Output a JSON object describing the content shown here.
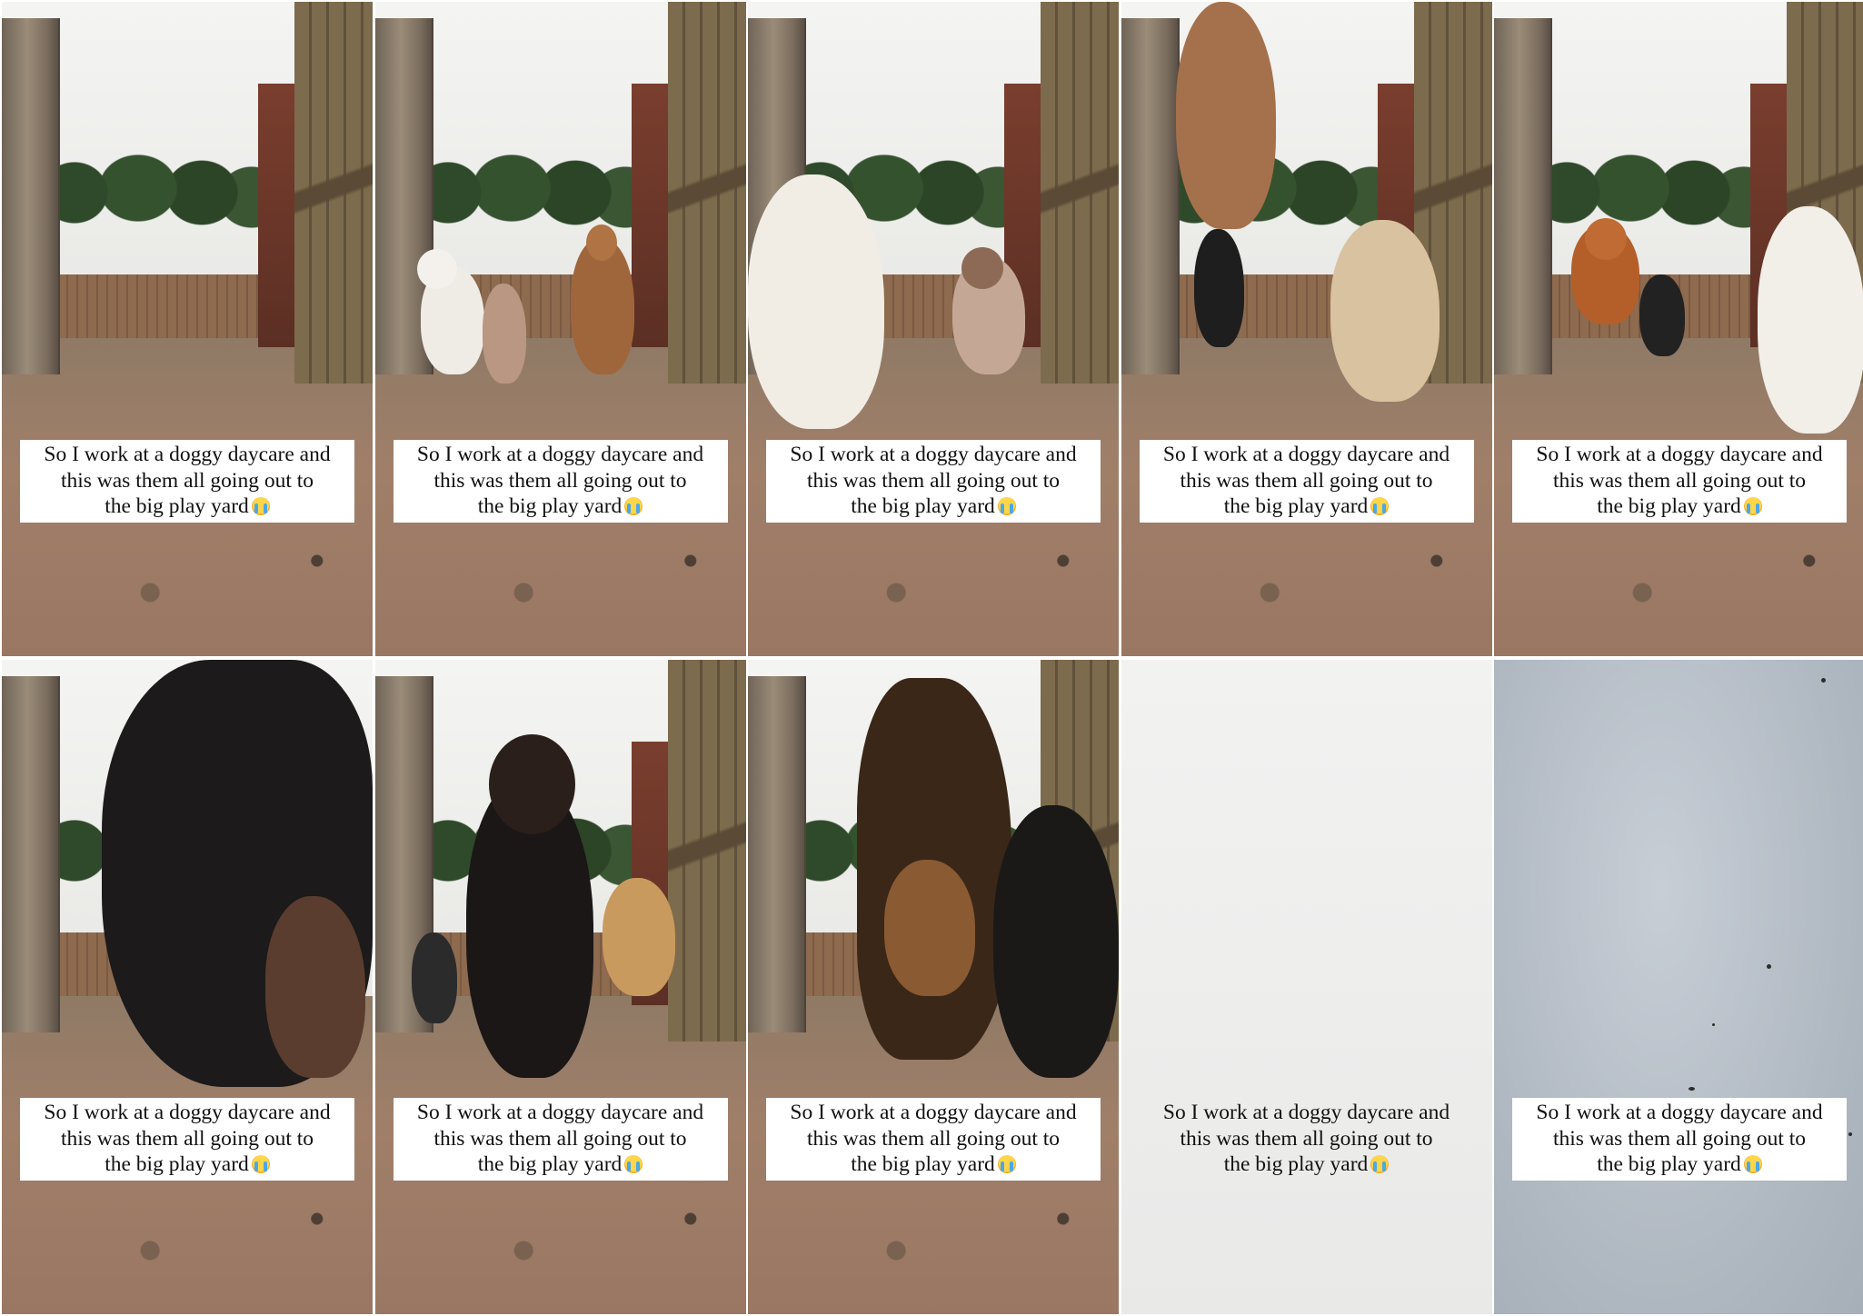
{
  "caption": {
    "line1": "So I work at a doggy daycare and",
    "line2": "this was them all going out to",
    "line3": "the big play yard",
    "emoji_icon": "loudly-crying-face-icon"
  },
  "frames": [
    {
      "scene": "yard-empty"
    },
    {
      "scene": "yard-dogs-approach"
    },
    {
      "scene": "yard-white-dog-close"
    },
    {
      "scene": "yard-dog-leaping"
    },
    {
      "scene": "yard-dogs-running"
    },
    {
      "scene": "yard-black-dog-close"
    },
    {
      "scene": "yard-rottweiler-front"
    },
    {
      "scene": "yard-dog-jumping-over"
    },
    {
      "scene": "sky-blank-light"
    },
    {
      "scene": "sky-blank-grey"
    }
  ]
}
